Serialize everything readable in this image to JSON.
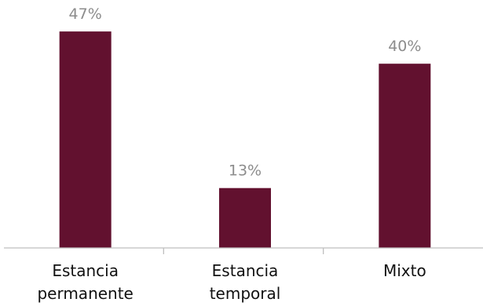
{
  "chart_data": {
    "type": "bar",
    "categories": [
      [
        "Estancia",
        "permanente"
      ],
      [
        "Estancia",
        "temporal"
      ],
      [
        "Mixto"
      ]
    ],
    "values": [
      47,
      13,
      40
    ],
    "data_labels": [
      "47%",
      "13%",
      "40%"
    ],
    "title": "",
    "xlabel": "",
    "ylabel": "",
    "ylim": [
      0,
      50
    ],
    "grid": false,
    "legend": "none",
    "bar_color": "#62112f",
    "axis_color": "#bfbfbf",
    "label_color": "#8c8c8c"
  }
}
